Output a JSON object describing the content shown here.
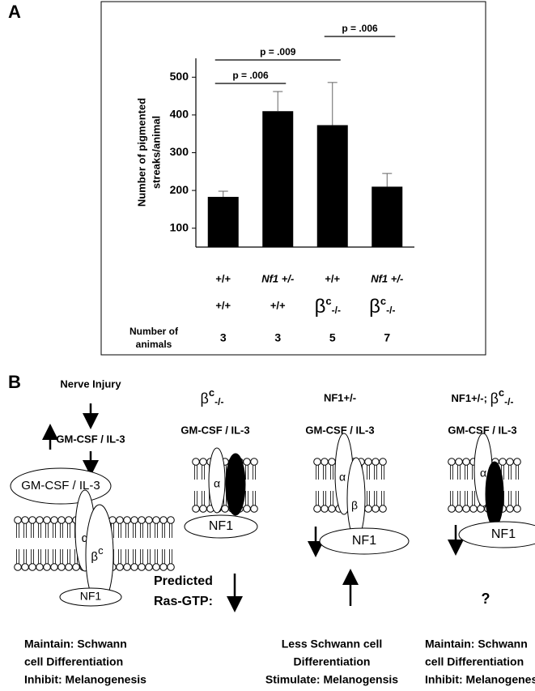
{
  "chart_data": {
    "type": "bar",
    "panel_label": "A",
    "ylabel": [
      "Number of pigmented",
      "streaks/animal"
    ],
    "values": [
      183,
      410,
      373,
      210
    ],
    "errors": [
      15,
      52,
      113,
      35
    ],
    "color": "#000000",
    "ylim": [
      50,
      550
    ],
    "yticks": [
      100,
      200,
      300,
      400,
      500
    ],
    "comparisons": [
      {
        "label": "p = .006",
        "from": 0,
        "to": 1
      },
      {
        "label": "p = .009",
        "from": 0,
        "to": 2
      },
      {
        "label": "p = .006",
        "from": 2,
        "to": 3
      }
    ],
    "genotype_row1": [
      "+/+",
      "Nf1 +/-",
      "+/+",
      "Nf1 +/-"
    ],
    "genotype_row2": [
      "+/+",
      "+/+",
      {
        "base": "β",
        "sup": "c",
        "sub": "-/-"
      },
      {
        "base": "β",
        "sup": "c",
        "sub": "-/-"
      }
    ],
    "animals_label": [
      "Number of",
      "animals"
    ],
    "animals": [
      3,
      3,
      5,
      7
    ]
  },
  "panel_b": {
    "label": "B",
    "injury": "Nerve Injury",
    "heading2": {
      "base": "β",
      "sup": "c",
      "sub": "-/-"
    },
    "heading3": "NF1+/-",
    "heading4": {
      "prefix": "NF1+/-; ",
      "base": "β",
      "sup": "c",
      "sub": "-/-"
    },
    "ligand_up": "GM-CSF / IL-3",
    "ligands": [
      "GM-CSF / IL-3",
      "GM-CSF / IL-3",
      "GM-CSF / IL-3",
      "GM-CSF / IL-3"
    ],
    "alphas": [
      "α",
      "α",
      "α",
      "α"
    ],
    "beta1": {
      "base": "β",
      "sup": "c"
    },
    "beta3": "β",
    "nf1": [
      "NF1",
      "NF1",
      "NF1",
      "NF1"
    ],
    "predicted": [
      "Predicted",
      "Ras-GTP:"
    ],
    "unknown": "?",
    "outcomes": [
      [
        "Maintain: Schwann",
        "cell Differentiation",
        "Inhibit: Melanogenesis"
      ],
      [
        "Less Schwann cell",
        "Differentiation",
        "Stimulate: Melanogensis"
      ],
      [
        "Maintain: Schwann",
        "cell Differentiation",
        "Inhibit: Melanogenesis"
      ]
    ]
  }
}
